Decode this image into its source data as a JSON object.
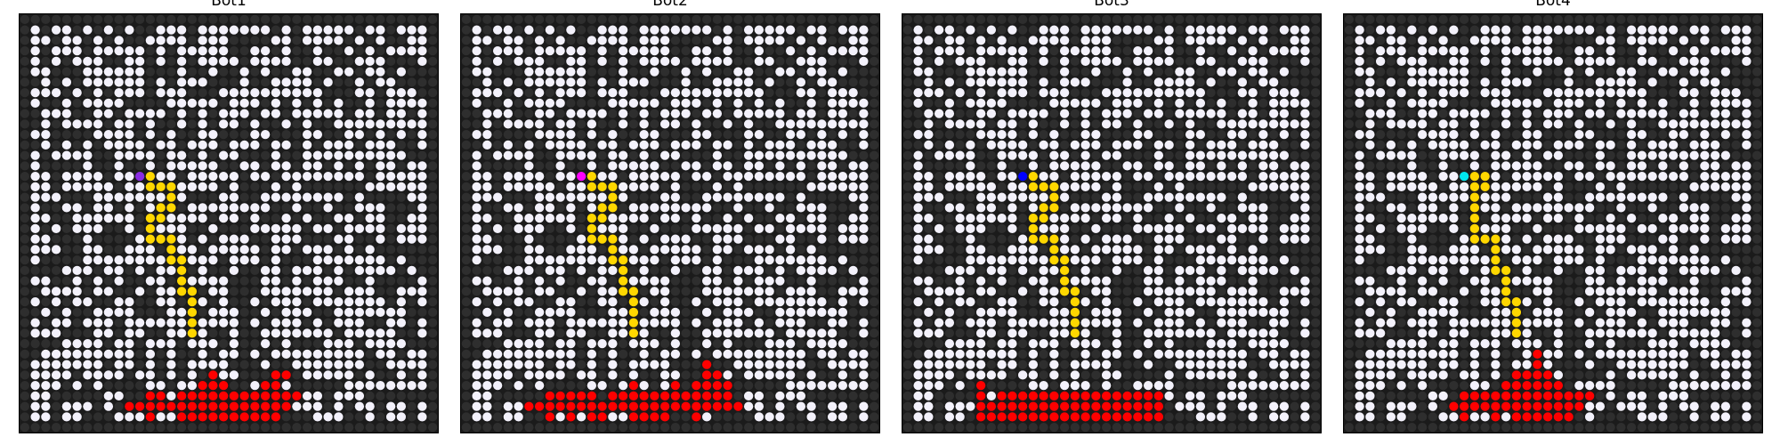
{
  "grid_size": 40,
  "colors": {
    "background": "#1b1b1b",
    "blocked_cell": "#2e2e2e",
    "open_cell": "#f3f1fb",
    "path": "#ffd700",
    "fire": "#ff0000"
  },
  "panels": [
    {
      "title": "Bot1",
      "bot_color": "#8a2be2",
      "bot_cell": [
        11,
        15
      ],
      "path_cells": [
        [
          12,
          15
        ],
        [
          12,
          16
        ],
        [
          13,
          16
        ],
        [
          14,
          16
        ],
        [
          14,
          17
        ],
        [
          14,
          18
        ],
        [
          13,
          18
        ],
        [
          13,
          19
        ],
        [
          12,
          19
        ],
        [
          12,
          20
        ],
        [
          12,
          21
        ],
        [
          13,
          21
        ],
        [
          14,
          21
        ],
        [
          14,
          22
        ],
        [
          14,
          23
        ],
        [
          15,
          23
        ],
        [
          15,
          24
        ],
        [
          15,
          25
        ],
        [
          15,
          26
        ],
        [
          16,
          26
        ],
        [
          16,
          27
        ],
        [
          16,
          28
        ],
        [
          16,
          29
        ],
        [
          16,
          30
        ]
      ],
      "fire_rows": [
        {
          "row": 34,
          "cols": [
            18,
            24,
            25
          ]
        },
        {
          "row": 35,
          "cols": [
            17,
            18,
            19,
            23,
            24
          ]
        },
        {
          "row": 36,
          "cols": [
            12,
            13,
            15,
            16,
            17,
            18,
            19,
            20,
            21,
            22,
            23,
            24,
            25,
            26
          ]
        },
        {
          "row": 37,
          "cols": [
            10,
            11,
            12,
            13,
            14,
            15,
            16,
            17,
            18,
            19,
            20,
            21,
            22,
            23,
            24,
            25
          ]
        },
        {
          "row": 38,
          "cols": [
            12,
            15,
            16,
            17,
            18,
            19,
            20,
            21,
            22,
            23,
            24
          ]
        }
      ]
    },
    {
      "title": "Bot2",
      "bot_color": "#ff00ff",
      "bot_cell": [
        11,
        15
      ],
      "path_cells": [
        [
          12,
          15
        ],
        [
          12,
          16
        ],
        [
          13,
          16
        ],
        [
          14,
          16
        ],
        [
          14,
          17
        ],
        [
          14,
          18
        ],
        [
          13,
          18
        ],
        [
          13,
          19
        ],
        [
          12,
          19
        ],
        [
          12,
          20
        ],
        [
          12,
          21
        ],
        [
          13,
          21
        ],
        [
          14,
          21
        ],
        [
          14,
          22
        ],
        [
          14,
          23
        ],
        [
          15,
          23
        ],
        [
          15,
          24
        ],
        [
          15,
          25
        ],
        [
          15,
          26
        ],
        [
          16,
          26
        ],
        [
          16,
          27
        ],
        [
          16,
          28
        ],
        [
          16,
          29
        ],
        [
          16,
          30
        ]
      ],
      "fire_rows": [
        {
          "row": 33,
          "cols": [
            23
          ]
        },
        {
          "row": 34,
          "cols": [
            23,
            24
          ]
        },
        {
          "row": 35,
          "cols": [
            16,
            20,
            22,
            23,
            24,
            25
          ]
        },
        {
          "row": 36,
          "cols": [
            8,
            9,
            10,
            11,
            12,
            14,
            15,
            16,
            17,
            18,
            19,
            20,
            21,
            22,
            23,
            24,
            25
          ]
        },
        {
          "row": 37,
          "cols": [
            6,
            7,
            8,
            9,
            10,
            11,
            12,
            13,
            14,
            15,
            16,
            17,
            18,
            19,
            20,
            21,
            22,
            23,
            24,
            25,
            26
          ]
        },
        {
          "row": 38,
          "cols": [
            8,
            10,
            12,
            13,
            16,
            17,
            18,
            19,
            22
          ]
        }
      ]
    },
    {
      "title": "Bot3",
      "bot_color": "#0000ff",
      "bot_cell": [
        11,
        15
      ],
      "path_cells": [
        [
          12,
          15
        ],
        [
          12,
          16
        ],
        [
          13,
          16
        ],
        [
          14,
          16
        ],
        [
          14,
          17
        ],
        [
          14,
          18
        ],
        [
          13,
          18
        ],
        [
          13,
          19
        ],
        [
          12,
          19
        ],
        [
          12,
          20
        ],
        [
          12,
          21
        ],
        [
          13,
          21
        ],
        [
          14,
          21
        ],
        [
          14,
          22
        ],
        [
          14,
          23
        ],
        [
          15,
          23
        ],
        [
          15,
          24
        ],
        [
          15,
          25
        ],
        [
          15,
          26
        ],
        [
          16,
          26
        ],
        [
          16,
          27
        ],
        [
          16,
          28
        ],
        [
          16,
          29
        ],
        [
          16,
          30
        ]
      ],
      "fire_rows": [
        {
          "row": 35,
          "cols": [
            7
          ]
        },
        {
          "row": 36,
          "cols": [
            7,
            9,
            10,
            11,
            12,
            13,
            14,
            15,
            16,
            17,
            18,
            19,
            20,
            21,
            22,
            23,
            24
          ]
        },
        {
          "row": 37,
          "cols": [
            7,
            8,
            9,
            10,
            11,
            12,
            13,
            14,
            15,
            16,
            17,
            18,
            19,
            20,
            21,
            22,
            23,
            24
          ]
        },
        {
          "row": 38,
          "cols": [
            7,
            8,
            9,
            10,
            11,
            12,
            13,
            14,
            15,
            16,
            17,
            18,
            19,
            20,
            21,
            22,
            23,
            24
          ]
        }
      ]
    },
    {
      "title": "Bot4",
      "bot_color": "#00e5ee",
      "bot_cell": [
        11,
        15
      ],
      "path_cells": [
        [
          12,
          15
        ],
        [
          13,
          15
        ],
        [
          13,
          16
        ],
        [
          12,
          16
        ],
        [
          12,
          17
        ],
        [
          12,
          18
        ],
        [
          12,
          19
        ],
        [
          12,
          20
        ],
        [
          12,
          21
        ],
        [
          13,
          21
        ],
        [
          14,
          21
        ],
        [
          14,
          22
        ],
        [
          14,
          23
        ],
        [
          14,
          24
        ],
        [
          15,
          24
        ],
        [
          15,
          25
        ],
        [
          15,
          26
        ],
        [
          15,
          27
        ],
        [
          16,
          27
        ],
        [
          16,
          28
        ],
        [
          16,
          29
        ],
        [
          16,
          30
        ]
      ],
      "fire_rows": [
        {
          "row": 32,
          "cols": [
            18
          ]
        },
        {
          "row": 33,
          "cols": [
            18
          ]
        },
        {
          "row": 34,
          "cols": [
            16,
            17,
            18,
            19
          ]
        },
        {
          "row": 35,
          "cols": [
            15,
            16,
            17,
            18,
            19,
            20
          ]
        },
        {
          "row": 36,
          "cols": [
            11,
            12,
            13,
            14,
            15,
            16,
            17,
            18,
            19,
            20,
            21,
            22,
            23
          ]
        },
        {
          "row": 37,
          "cols": [
            10,
            11,
            12,
            13,
            14,
            15,
            16,
            17,
            18,
            19,
            20,
            21,
            22
          ]
        },
        {
          "row": 38,
          "cols": [
            11,
            14,
            16,
            17,
            18,
            19,
            20,
            21
          ]
        }
      ]
    }
  ]
}
